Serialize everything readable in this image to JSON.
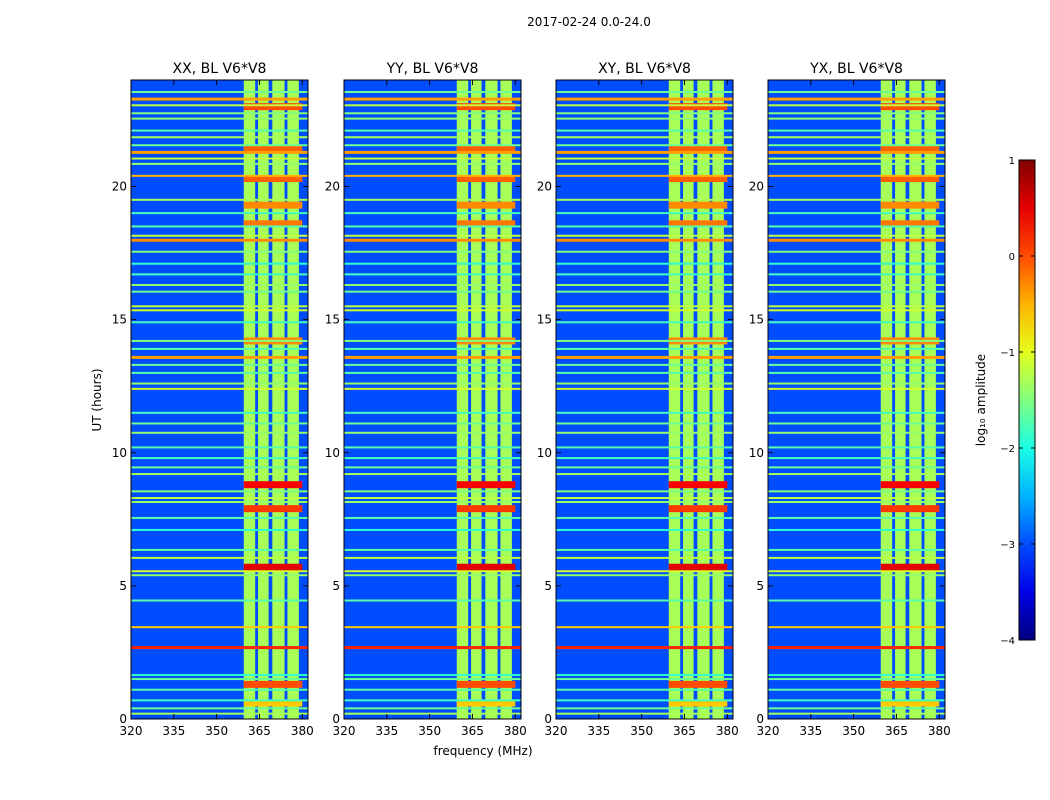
{
  "chart_data": {
    "type": "heatmap",
    "title": "2017-02-24 0.0-24.0",
    "xlabel": "frequency (MHz)",
    "ylabel": "UT (hours)",
    "xlim": [
      320,
      382
    ],
    "ylim": [
      0,
      24
    ],
    "xticks": [
      320,
      335,
      350,
      365,
      380
    ],
    "yticks": [
      0,
      5,
      10,
      15,
      20
    ],
    "panels": [
      {
        "title": "XX, BL V6*V8"
      },
      {
        "title": "YY, BL V6*V8"
      },
      {
        "title": "XY, BL V6*V8"
      },
      {
        "title": "YX, BL V6*V8"
      }
    ],
    "colorbar": {
      "label": "log₁₀ amplitude",
      "range": [
        -4,
        1
      ],
      "ticks": [
        "1",
        "0",
        "−1",
        "−2",
        "−3",
        "−4"
      ],
      "tick_values": [
        1,
        0,
        -1,
        -2,
        -3,
        -4
      ],
      "colormap": "jet"
    },
    "rfi_band_mhz": [
      359.5,
      380
    ],
    "rfi_columns_mhz": [
      [
        359.5,
        363.5
      ],
      [
        364.5,
        368.2
      ],
      [
        369.5,
        373.8
      ],
      [
        374.8,
        378.8
      ]
    ],
    "rfi_lines_ut": [
      {
        "t": 0.2,
        "level": -1.3
      },
      {
        "t": 0.4,
        "level": -1.6
      },
      {
        "t": 0.7,
        "level": -1.8
      },
      {
        "t": 1.1,
        "level": -1.7
      },
      {
        "t": 1.5,
        "level": -1.6
      },
      {
        "t": 1.65,
        "level": -1.9
      },
      {
        "t": 2.7,
        "level": 0.2
      },
      {
        "t": 3.45,
        "level": -0.6
      },
      {
        "t": 4.45,
        "level": -1.7
      },
      {
        "t": 5.4,
        "level": -1.4
      },
      {
        "t": 5.55,
        "level": -1.1
      },
      {
        "t": 6.05,
        "level": -1.2
      },
      {
        "t": 6.35,
        "level": -1.7
      },
      {
        "t": 7.1,
        "level": -1.9
      },
      {
        "t": 7.55,
        "level": -1.7
      },
      {
        "t": 8.15,
        "level": -1.4
      },
      {
        "t": 8.3,
        "level": -1.2
      },
      {
        "t": 8.55,
        "level": -1.5
      },
      {
        "t": 9.2,
        "level": -1.3
      },
      {
        "t": 9.45,
        "level": -1.6
      },
      {
        "t": 9.8,
        "level": -1.8
      },
      {
        "t": 10.2,
        "level": -1.7
      },
      {
        "t": 10.75,
        "level": -1.4
      },
      {
        "t": 11.1,
        "level": -1.6
      },
      {
        "t": 11.5,
        "level": -1.8
      },
      {
        "t": 12.4,
        "level": -1.1
      },
      {
        "t": 12.6,
        "level": -1.4
      },
      {
        "t": 13.0,
        "level": -1.7
      },
      {
        "t": 13.3,
        "level": -1.6
      },
      {
        "t": 13.6,
        "level": -0.4
      },
      {
        "t": 13.9,
        "level": -1.7
      },
      {
        "t": 14.2,
        "level": -1.5
      },
      {
        "t": 14.9,
        "level": -1.8
      },
      {
        "t": 15.35,
        "level": -1.1
      },
      {
        "t": 15.5,
        "level": -1.2
      },
      {
        "t": 16.05,
        "level": -1.6
      },
      {
        "t": 16.3,
        "level": -1.4
      },
      {
        "t": 16.7,
        "level": -1.8
      },
      {
        "t": 17.1,
        "level": -1.9
      },
      {
        "t": 17.55,
        "level": -1.5
      },
      {
        "t": 18.0,
        "level": -0.3
      },
      {
        "t": 18.15,
        "level": -1.2
      },
      {
        "t": 18.5,
        "level": -1.7
      },
      {
        "t": 19.0,
        "level": -1.8
      },
      {
        "t": 19.5,
        "level": -1.3
      },
      {
        "t": 20.4,
        "level": -0.5
      },
      {
        "t": 20.85,
        "level": -1.4
      },
      {
        "t": 21.05,
        "level": -1.2
      },
      {
        "t": 21.3,
        "level": -0.4
      },
      {
        "t": 21.55,
        "level": -1.6
      },
      {
        "t": 21.85,
        "level": -1.3
      },
      {
        "t": 22.1,
        "level": -1.7
      },
      {
        "t": 22.55,
        "level": -1.4
      },
      {
        "t": 22.75,
        "level": -1.5
      },
      {
        "t": 23.05,
        "level": -1.2
      },
      {
        "t": 23.3,
        "level": -0.4
      },
      {
        "t": 23.55,
        "level": -1.6
      }
    ],
    "bright_rows_in_band_ut": [
      {
        "t": 0.6,
        "level": -0.6
      },
      {
        "t": 1.3,
        "level": 0.0
      },
      {
        "t": 5.7,
        "level": 0.5
      },
      {
        "t": 7.9,
        "level": 0.1
      },
      {
        "t": 8.8,
        "level": 0.4
      },
      {
        "t": 14.2,
        "level": -0.3
      },
      {
        "t": 18.6,
        "level": -0.2
      },
      {
        "t": 19.3,
        "level": -0.3
      },
      {
        "t": 20.3,
        "level": -0.1
      },
      {
        "t": 21.4,
        "level": -0.1
      },
      {
        "t": 23.0,
        "level": 0.0
      }
    ],
    "background_level": -3.0,
    "band_level": -1.3
  }
}
